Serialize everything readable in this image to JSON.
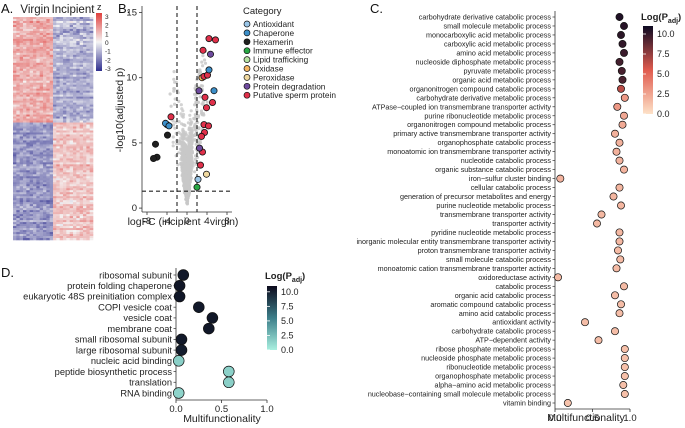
{
  "colors": {
    "heat_high": "#e0403d",
    "heat_mid": "#f4f4f4",
    "heat_low": "#2f2f8f",
    "mf_low": "#fde2c8",
    "mf_mid": "#e05b4e",
    "mf_high": "#0d0a22",
    "mfd_low": "#a9f0e0",
    "mfd_mid": "#3d7f8a",
    "mfd_high": "#0c0a1c",
    "grey_point": "#c8c8c8",
    "dashed_line": "#222222"
  },
  "chart_data": [
    {
      "panel": "A.",
      "type": "heatmap",
      "column_groups": [
        "Virgin",
        "Incipient"
      ],
      "legend_title": "z",
      "legend_ticks": [
        "3",
        "2",
        "1",
        "0",
        "-1",
        "-2",
        "-3"
      ]
    },
    {
      "panel": "B.",
      "type": "scatter",
      "xlabel": "logFC (incipient - virgin)",
      "ylabel": "-log10(adjusted p)",
      "xlim": [
        -9,
        9
      ],
      "ylim": [
        -0.3,
        15.5
      ],
      "xticks": [
        "-8",
        "-4",
        "0",
        "4",
        "8"
      ],
      "yticks": [
        "0",
        "5",
        "10",
        "15"
      ],
      "vlines": [
        -2,
        2
      ],
      "hline": 1.3,
      "legend_title": "Category",
      "categories": [
        {
          "name": "Antioxidant",
          "color": "#9ac6e8"
        },
        {
          "name": "Chaperone",
          "color": "#3c8fc9"
        },
        {
          "name": "Hexamerin",
          "color": "#1f1f1f"
        },
        {
          "name": "Immune effector",
          "color": "#28a845"
        },
        {
          "name": "Lipid trafficking",
          "color": "#b7e3a3"
        },
        {
          "name": "Oxidase",
          "color": "#f5b562"
        },
        {
          "name": "Peroxidase",
          "color": "#f0d9a0"
        },
        {
          "name": "Protein degradation",
          "color": "#6e4a9e"
        },
        {
          "name": "Putative sperm protein",
          "color": "#e0304a"
        }
      ],
      "points": [
        {
          "x": -6.3,
          "y": 4.9,
          "c": 2
        },
        {
          "x": -6.0,
          "y": 3.9,
          "c": 2
        },
        {
          "x": -6.7,
          "y": 3.8,
          "c": 2
        },
        {
          "x": -4.0,
          "y": 6.4,
          "c": 2
        },
        {
          "x": -4.3,
          "y": 6.5,
          "c": 1
        },
        {
          "x": -3.6,
          "y": 6.3,
          "c": 1
        },
        {
          "x": -3.9,
          "y": 5.6,
          "c": 2
        },
        {
          "x": -3.2,
          "y": 7.0,
          "c": 8
        },
        {
          "x": 3.0,
          "y": 10.0,
          "c": 5
        },
        {
          "x": 3.4,
          "y": 10.1,
          "c": 8
        },
        {
          "x": 4.1,
          "y": 10.2,
          "c": 8
        },
        {
          "x": 4.4,
          "y": 10.6,
          "c": 1
        },
        {
          "x": 3.2,
          "y": 12.1,
          "c": 8
        },
        {
          "x": 4.7,
          "y": 11.8,
          "c": 7
        },
        {
          "x": 4.4,
          "y": 13.0,
          "c": 8
        },
        {
          "x": 5.7,
          "y": 12.9,
          "c": 8
        },
        {
          "x": 5.4,
          "y": 9.0,
          "c": 1
        },
        {
          "x": 5.1,
          "y": 8.1,
          "c": 8
        },
        {
          "x": 3.6,
          "y": 8.5,
          "c": 8
        },
        {
          "x": 3.4,
          "y": 6.4,
          "c": 8
        },
        {
          "x": 4.3,
          "y": 6.3,
          "c": 8
        },
        {
          "x": 3.5,
          "y": 5.8,
          "c": 8
        },
        {
          "x": 3.1,
          "y": 4.3,
          "c": 8
        },
        {
          "x": 2.7,
          "y": 3.3,
          "c": 8
        },
        {
          "x": 3.9,
          "y": 2.6,
          "c": 6
        },
        {
          "x": 2.2,
          "y": 2.2,
          "c": 0
        },
        {
          "x": 2.0,
          "y": 1.6,
          "c": 3
        },
        {
          "x": 3.9,
          "y": 7.7,
          "c": 8
        },
        {
          "x": 2.5,
          "y": 4.6,
          "c": 7
        },
        {
          "x": 2.4,
          "y": 9.0,
          "c": 7
        },
        {
          "x": 2.9,
          "y": 5.5,
          "c": 8
        }
      ]
    },
    {
      "panel": "C.",
      "type": "scatter",
      "xlabel": "Multifunctionality",
      "xlim": [
        0,
        1.0
      ],
      "xticks": [
        "0.0",
        "0.5",
        "1.0"
      ],
      "legend_title": "Log(P",
      "legend_title_sub": "adj",
      "legend_title_end": ")",
      "color_ticks": [
        "10.0",
        "7.5",
        "5.0",
        "2.5",
        "0.0"
      ],
      "color_range": [
        0,
        11
      ],
      "terms": [
        "carbohydrate derivative catabolic process",
        "small molecule metabolic process",
        "monocarboxylic acid metabolic process",
        "carboxylic acid metabolic process",
        "amino acid metabolic process",
        "nucleoside diphosphate metabolic process",
        "pyruvate metabolic process",
        "organic acid metabolic process",
        "organonitrogen compound catabolic process",
        "carbohydrate derivative metabolic process",
        "ATPase−coupled ion transmembrane transporter activity",
        "purine ribonucleotide metabolic process",
        "organonitrogen compound metabolic process",
        "primary active transmembrane transporter activity",
        "organophosphate catabolic process",
        "monoatomic ion transmembrane transporter activity",
        "nucleotide catabolic process",
        "organic substance catabolic process",
        "iron−sulfur cluster binding",
        "cellular catabolic process",
        "generation of precursor metabolites and energy",
        "purine nucleotide metabolic process",
        "transmembrane transporter activity",
        "transporter activity",
        "pyridine nucleotide metabolic process",
        "inorganic molecular entity transmembrane transporter activity",
        "proton transmembrane transporter activity",
        "small molecule catabolic process",
        "monoatomic cation transmembrane transporter activity",
        "oxidoreductase activity",
        "catabolic process",
        "organic acid catabolic process",
        "aromatic compound catabolic process",
        "amino acid catabolic process",
        "antioxidant activity",
        "carbohydrate catabolic process",
        "ATP−dependent activity",
        "ribose phosphate metabolic process",
        "nucleoside phosphate metabolic process",
        "ribonucleotide metabolic process",
        "organophosphate metabolic process",
        "alpha−amino acid metabolic process",
        "nucleobase−containing small molecule metabolic process",
        "vitamin binding"
      ],
      "multifunctionality": [
        0.86,
        0.92,
        0.88,
        0.9,
        0.92,
        0.86,
        0.89,
        0.9,
        0.88,
        0.93,
        0.83,
        0.92,
        0.9,
        0.8,
        0.86,
        0.82,
        0.86,
        0.92,
        0.07,
        0.86,
        0.78,
        0.88,
        0.62,
        0.56,
        0.86,
        0.86,
        0.84,
        0.87,
        0.82,
        0.04,
        0.92,
        0.8,
        0.88,
        0.86,
        0.4,
        0.8,
        0.58,
        0.93,
        0.93,
        0.93,
        0.93,
        0.91,
        0.93,
        0.17
      ],
      "log_padj": [
        10.5,
        10.3,
        10.2,
        10.0,
        9.8,
        9.6,
        9.5,
        9.4,
        6.5,
        3.0,
        3.0,
        2.4,
        2.3,
        2.0,
        2.0,
        2.0,
        1.9,
        1.9,
        1.9,
        1.8,
        1.8,
        1.8,
        1.7,
        1.7,
        1.7,
        1.7,
        1.6,
        1.6,
        1.6,
        1.6,
        1.6,
        1.5,
        1.5,
        1.5,
        1.5,
        1.5,
        1.5,
        1.4,
        1.4,
        1.4,
        1.4,
        1.4,
        1.4,
        1.3
      ]
    },
    {
      "panel": "D.",
      "type": "scatter",
      "xlabel": "Multifunctionality",
      "xlim": [
        0,
        1.0
      ],
      "xticks": [
        "0.0",
        "0.5",
        "1.0"
      ],
      "legend_title": "Log(P",
      "legend_title_sub": "adj",
      "legend_title_end": ")",
      "color_ticks": [
        "10.0",
        "7.5",
        "5.0",
        "2.5",
        "0.0"
      ],
      "color_range": [
        0,
        11
      ],
      "terms": [
        "ribosomal subunit",
        "protein folding chaperone",
        "eukaryotic 48S preinitiation complex",
        "COPI vesicle coat",
        "vesicle coat",
        "membrane coat",
        "small ribosomal subunit",
        "large ribosomal subunit",
        "nucleic acid binding",
        "peptide biosynthetic process",
        "translation",
        "RNA binding"
      ],
      "multifunctionality": [
        0.08,
        0.04,
        0.04,
        0.25,
        0.4,
        0.36,
        0.06,
        0.06,
        0.03,
        0.58,
        0.58,
        0.03
      ],
      "log_padj": [
        10.3,
        10.4,
        10.4,
        10.3,
        10.4,
        10.4,
        10.3,
        10.1,
        1.6,
        1.5,
        1.6,
        1.4
      ]
    }
  ]
}
